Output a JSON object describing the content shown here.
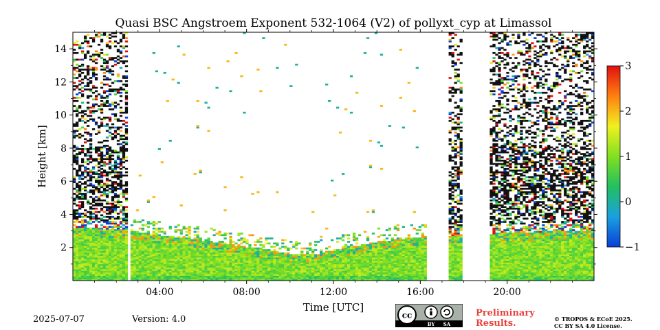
{
  "chart_data": {
    "type": "heatmap",
    "title": "Quasi BSC Angstroem Exponent 532-1064 (V2) of pollyxt_cyp at Limassol",
    "xlabel": "Time [UTC]",
    "ylabel": "Height [km]",
    "xlim": [
      0,
      24
    ],
    "ylim": [
      0,
      15
    ],
    "x_ticks": [
      {
        "value": 4,
        "label": "04:00"
      },
      {
        "value": 8,
        "label": "08:00"
      },
      {
        "value": 12,
        "label": "12:00"
      },
      {
        "value": 16,
        "label": "16:00"
      },
      {
        "value": 20,
        "label": "20:00"
      }
    ],
    "y_ticks": [
      {
        "value": 2,
        "label": "2"
      },
      {
        "value": 4,
        "label": "4"
      },
      {
        "value": 6,
        "label": "6"
      },
      {
        "value": 8,
        "label": "8"
      },
      {
        "value": 10,
        "label": "10"
      },
      {
        "value": 12,
        "label": "12"
      },
      {
        "value": 14,
        "label": "14"
      }
    ],
    "colorbar": {
      "min": -1,
      "max": 3,
      "ticks": [
        {
          "value": -1,
          "label": "−1"
        },
        {
          "value": 0,
          "label": "0"
        },
        {
          "value": 1,
          "label": "1"
        },
        {
          "value": 2,
          "label": "2"
        },
        {
          "value": 3,
          "label": "3"
        }
      ],
      "colors": [
        "#0a3fd6",
        "#1aa0e0",
        "#22c060",
        "#80e020",
        "#f0f020",
        "#ff8010",
        "#e01010"
      ]
    },
    "no_data_gaps": [
      [
        2.55,
        2.7
      ],
      [
        16.35,
        17.35
      ],
      [
        17.9,
        19.2
      ]
    ],
    "boundary_layer_top_km": [
      [
        0,
        3.2
      ],
      [
        2.5,
        3.0
      ],
      [
        4,
        2.7
      ],
      [
        6,
        2.4
      ],
      [
        8,
        2.0
      ],
      [
        10,
        1.6
      ],
      [
        11,
        1.5
      ],
      [
        12,
        1.8
      ],
      [
        14,
        2.3
      ],
      [
        16,
        2.6
      ],
      [
        17.5,
        2.7
      ],
      [
        19.5,
        2.8
      ],
      [
        24,
        3.0
      ]
    ],
    "typical_value_in_layer": 1.0
  },
  "footer": {
    "date": "2025-07-07",
    "version": "Version: 4.0",
    "preliminary_line1": "Preliminary",
    "preliminary_line2": "Results.",
    "copyright_line1": "© TROPOS & ECoE 2025.",
    "copyright_line2": "CC BY SA 4.0 License."
  },
  "license_badge": {
    "cc": "cc",
    "by": "BY",
    "sa": "SA"
  }
}
